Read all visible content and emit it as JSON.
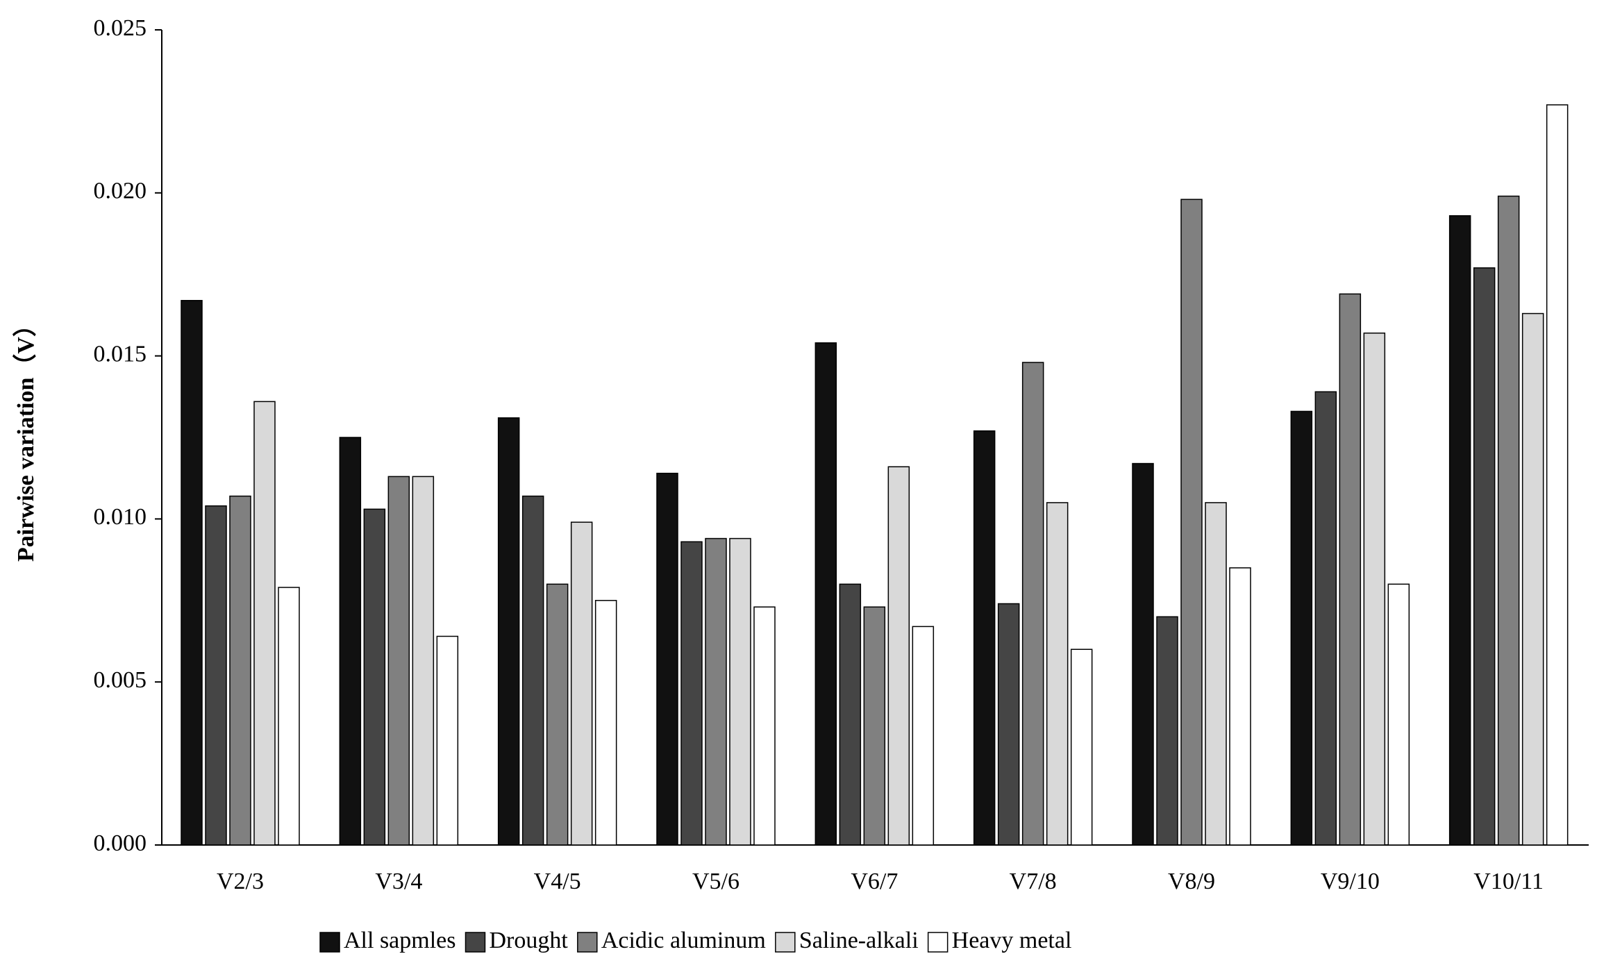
{
  "chart_data": {
    "type": "bar",
    "ylabel": "Pairwise variation（V）",
    "categories": [
      "V2/3",
      "V3/4",
      "V4/5",
      "V5/6",
      "V6/7",
      "V7/8",
      "V8/9",
      "V9/10",
      "V10/11"
    ],
    "series": [
      {
        "name": "All sapmles",
        "color": "#111111",
        "values": [
          0.0167,
          0.0125,
          0.0131,
          0.0114,
          0.0154,
          0.0127,
          0.0117,
          0.0133,
          0.0193
        ]
      },
      {
        "name": "Drought",
        "color": "#454545",
        "values": [
          0.0104,
          0.0103,
          0.0107,
          0.0093,
          0.008,
          0.0074,
          0.007,
          0.0139,
          0.0177
        ]
      },
      {
        "name": "Acidic aluminum",
        "color": "#808080",
        "values": [
          0.0107,
          0.0113,
          0.008,
          0.0094,
          0.0073,
          0.0148,
          0.0198,
          0.0169,
          0.0199
        ]
      },
      {
        "name": "Saline-alkali",
        "color": "#d9d9d9",
        "values": [
          0.0136,
          0.0113,
          0.0099,
          0.0094,
          0.0116,
          0.0105,
          0.0105,
          0.0157,
          0.0163
        ]
      },
      {
        "name": "Heavy metal",
        "color": "#ffffff",
        "values": [
          0.0079,
          0.0064,
          0.0075,
          0.0073,
          0.0067,
          0.006,
          0.0085,
          0.008,
          0.0227
        ]
      }
    ],
    "ylim": [
      0,
      0.025
    ],
    "yticks": [
      {
        "value": 0,
        "label": "0.000"
      },
      {
        "value": 0.005,
        "label": "0.005"
      },
      {
        "value": 0.01,
        "label": "0.010"
      },
      {
        "value": 0.015,
        "label": "0.015"
      },
      {
        "value": 0.02,
        "label": "0.020"
      },
      {
        "value": 0.025,
        "label": "0.025"
      }
    ],
    "grid": false,
    "legend": "bottom"
  }
}
